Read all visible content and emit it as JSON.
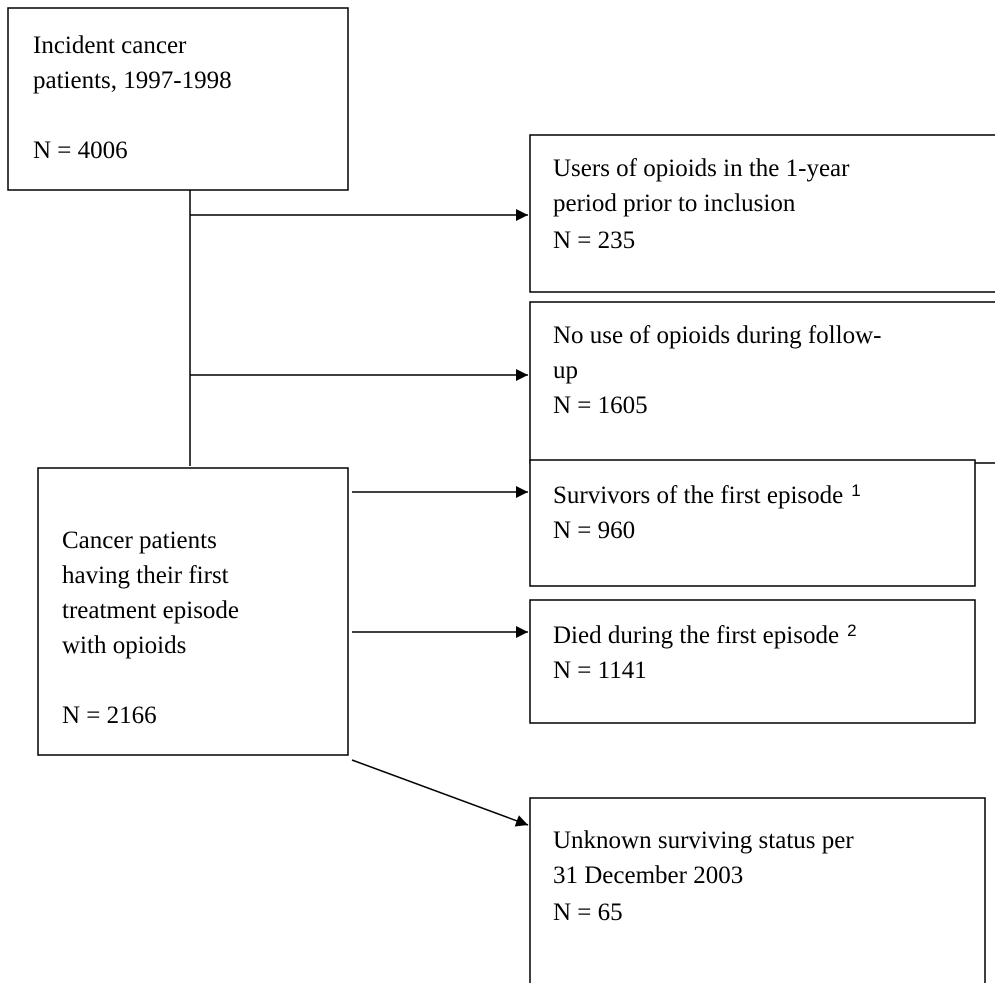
{
  "nodes": [
    {
      "lines": [
        "Incident cancer",
        "patients, 1997-1998",
        "N = 4006"
      ]
    },
    {
      "lines": [
        "Users of opioids in the 1-year",
        "period prior to inclusion",
        "N = 235"
      ]
    },
    {
      "lines": [
        "No use of opioids during follow-",
        "up",
        "N = 1605"
      ]
    },
    {
      "lines": [
        "Cancer patients",
        "having their first",
        "treatment episode",
        "with opioids",
        "N = 2166"
      ]
    },
    {
      "lines": [
        "Survivors of the first episode",
        "N = 960"
      ],
      "note": "1"
    },
    {
      "lines": [
        "Died during the first episode",
        "N = 1141"
      ],
      "note": "2"
    },
    {
      "lines": [
        "Unknown surviving status per",
        "31 December 2003",
        "N = 65"
      ]
    }
  ]
}
